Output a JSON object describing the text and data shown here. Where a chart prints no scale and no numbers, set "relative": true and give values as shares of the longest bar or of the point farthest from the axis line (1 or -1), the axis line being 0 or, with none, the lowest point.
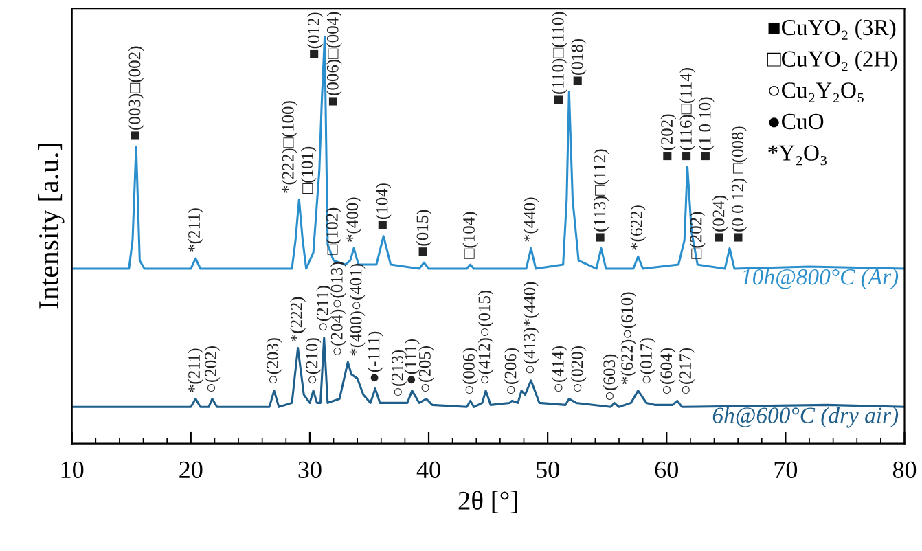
{
  "chart_data": {
    "type": "line",
    "relative": true,
    "xlabel": "2θ [°]",
    "ylabel": "Intensity [a.u.]",
    "xlim": [
      10,
      80
    ],
    "xticks": [
      10,
      20,
      30,
      40,
      50,
      60,
      70,
      80
    ],
    "grid": false,
    "legend": false,
    "marker": "none",
    "line_style": "solid",
    "series": [
      {
        "name": "10h@800°C (Ar)",
        "color": "#2a8fcc",
        "x": [
          10,
          14.8,
          15.1,
          15.4,
          15.7,
          16.1,
          20.0,
          20.4,
          20.8,
          28.5,
          28.8,
          29.1,
          29.4,
          29.7,
          30.3,
          30.8,
          31.0,
          31.25,
          31.5,
          32.0,
          33.0,
          33.4,
          33.7,
          34.1,
          35.6,
          36.2,
          36.8,
          39.2,
          39.6,
          40.0,
          43.2,
          43.5,
          43.8,
          48.2,
          48.6,
          49.0,
          51.3,
          51.6,
          51.8,
          52.1,
          52.6,
          54.1,
          54.5,
          54.9,
          57.2,
          57.6,
          58.0,
          61.0,
          61.5,
          61.75,
          62.1,
          62.6,
          64.9,
          65.3,
          65.7,
          72.0,
          80
        ],
        "values": [
          0.43,
          0.43,
          0.5,
          0.73,
          0.45,
          0.43,
          0.43,
          0.455,
          0.43,
          0.43,
          0.5,
          0.6,
          0.5,
          0.43,
          0.47,
          0.67,
          0.835,
          1.0,
          0.49,
          0.45,
          0.44,
          0.45,
          0.48,
          0.44,
          0.44,
          0.51,
          0.44,
          0.43,
          0.445,
          0.43,
          0.43,
          0.44,
          0.43,
          0.43,
          0.48,
          0.43,
          0.44,
          0.6,
          0.865,
          0.6,
          0.45,
          0.43,
          0.48,
          0.43,
          0.43,
          0.46,
          0.43,
          0.44,
          0.5,
          0.68,
          0.52,
          0.44,
          0.43,
          0.48,
          0.43,
          0.435,
          0.43
        ]
      },
      {
        "name": "6h@600°C (dry air)",
        "color": "#1f5f8b",
        "x": [
          10,
          20.0,
          20.4,
          20.8,
          21.5,
          21.8,
          22.2,
          26.6,
          27.0,
          27.4,
          28.5,
          29.0,
          29.5,
          30.0,
          30.3,
          30.6,
          30.9,
          31.2,
          31.5,
          32.5,
          33.2,
          33.5,
          34.0,
          34.5,
          35.1,
          35.5,
          35.9,
          37.5,
          38.2,
          38.6,
          39.2,
          39.8,
          40.3,
          43.2,
          43.5,
          43.8,
          44.5,
          44.8,
          45.2,
          46.8,
          47.0,
          47.5,
          47.8,
          48.1,
          48.6,
          49.3,
          51.5,
          51.8,
          52.4,
          55.3,
          55.6,
          56.0,
          57.0,
          57.6,
          58.3,
          59.0,
          60.5,
          60.9,
          61.3,
          73.5,
          80
        ],
        "values": [
          0.09,
          0.09,
          0.11,
          0.09,
          0.09,
          0.11,
          0.09,
          0.09,
          0.13,
          0.09,
          0.1,
          0.235,
          0.12,
          0.1,
          0.13,
          0.1,
          0.1,
          0.26,
          0.1,
          0.11,
          0.2,
          0.17,
          0.16,
          0.12,
          0.1,
          0.135,
          0.1,
          0.1,
          0.1,
          0.13,
          0.1,
          0.11,
          0.095,
          0.09,
          0.105,
          0.09,
          0.1,
          0.13,
          0.095,
          0.1,
          0.105,
          0.1,
          0.13,
          0.12,
          0.155,
          0.1,
          0.095,
          0.11,
          0.1,
          0.09,
          0.1,
          0.09,
          0.1,
          0.13,
          0.1,
          0.095,
          0.095,
          0.105,
          0.09,
          0.095,
          0.09
        ]
      }
    ],
    "annotations": [
      "■CuYO₂ (3R)",
      "□CuYO₂ (2H)",
      "○Cu₂Y₂O₅",
      "●CuO",
      "*Y₂O₃",
      {
        "text": "■(003)□(002)",
        "x": 15.4,
        "y": 0.73
      },
      {
        "text": "*(211)",
        "x": 20.4,
        "y": 0.455
      },
      {
        "text": "*(222)□(100)",
        "x": 29.1,
        "y": 0.6
      },
      {
        "text": "□(101)",
        "x": 29.1,
        "y": 0.6
      },
      {
        "text": "■(012)",
        "x": 31.25,
        "y": 1.0
      },
      {
        "text": "■(006)□(004)",
        "x": 31.25,
        "y": 1.0
      },
      {
        "text": "□(102)",
        "x": 32.0,
        "y": 0.45
      },
      {
        "text": "*(400)",
        "x": 33.7,
        "y": 0.48
      },
      {
        "text": "■(104)",
        "x": 36.2,
        "y": 0.51
      },
      {
        "text": "■(015)",
        "x": 39.6,
        "y": 0.445
      },
      {
        "text": "□(104)",
        "x": 43.5,
        "y": 0.44
      },
      {
        "text": "*(440)",
        "x": 48.6,
        "y": 0.48
      },
      {
        "text": "■(110)□(110)",
        "x": 51.8,
        "y": 0.865
      },
      {
        "text": "■(018)",
        "x": 51.8,
        "y": 0.865
      },
      {
        "text": "■(113)□(112)",
        "x": 54.5,
        "y": 0.48
      },
      {
        "text": "*(622)",
        "x": 57.6,
        "y": 0.46
      },
      {
        "text": "■(202)",
        "x": 61.75,
        "y": 0.68
      },
      {
        "text": "■(116)□(114)",
        "x": 61.75,
        "y": 0.68
      },
      {
        "text": "■(1 0 10)",
        "x": 61.75,
        "y": 0.68
      },
      {
        "text": "□(202)",
        "x": 62.6,
        "y": 0.44
      },
      {
        "text": "■(024)",
        "x": 65.3,
        "y": 0.48
      },
      {
        "text": "■(0 0 12) □(008)",
        "x": 65.3,
        "y": 0.48
      },
      {
        "text": "*(211)",
        "x": 20.4,
        "y": 0.11
      },
      {
        "text": "○(202)",
        "x": 21.8,
        "y": 0.11
      },
      {
        "text": "○(203)",
        "x": 27.0,
        "y": 0.13
      },
      {
        "text": "*(222)",
        "x": 29.0,
        "y": 0.235
      },
      {
        "text": "○(210)",
        "x": 30.3,
        "y": 0.13
      },
      {
        "text": "○(211)",
        "x": 31.2,
        "y": 0.26
      },
      {
        "text": "○(204)○(013)",
        "x": 33.2,
        "y": 0.2
      },
      {
        "text": "*(400)○(401)",
        "x": 33.2,
        "y": 0.2
      },
      {
        "text": "●(-111)",
        "x": 35.5,
        "y": 0.135
      },
      {
        "text": "○(213)",
        "x": 37.5,
        "y": 0.1
      },
      {
        "text": "●(111)",
        "x": 38.6,
        "y": 0.13
      },
      {
        "text": "○(205)",
        "x": 39.8,
        "y": 0.11
      },
      {
        "text": "○(006)",
        "x": 43.5,
        "y": 0.105
      },
      {
        "text": "○(412)○(015)",
        "x": 44.8,
        "y": 0.13
      },
      {
        "text": "○(206)",
        "x": 47.0,
        "y": 0.105
      },
      {
        "text": "○(413)*(440)",
        "x": 48.6,
        "y": 0.155
      },
      {
        "text": "○(414)",
        "x": 51.8,
        "y": 0.11
      },
      {
        "text": "○(020)",
        "x": 51.8,
        "y": 0.11
      },
      {
        "text": "○(603)",
        "x": 55.3,
        "y": 0.09
      },
      {
        "text": "*(622)○(610)",
        "x": 57.6,
        "y": 0.13
      },
      {
        "text": "○(017)",
        "x": 57.6,
        "y": 0.13
      },
      {
        "text": "○(604)",
        "x": 60.9,
        "y": 0.105
      },
      {
        "text": "○(217)",
        "x": 60.9,
        "y": 0.105
      }
    ]
  }
}
